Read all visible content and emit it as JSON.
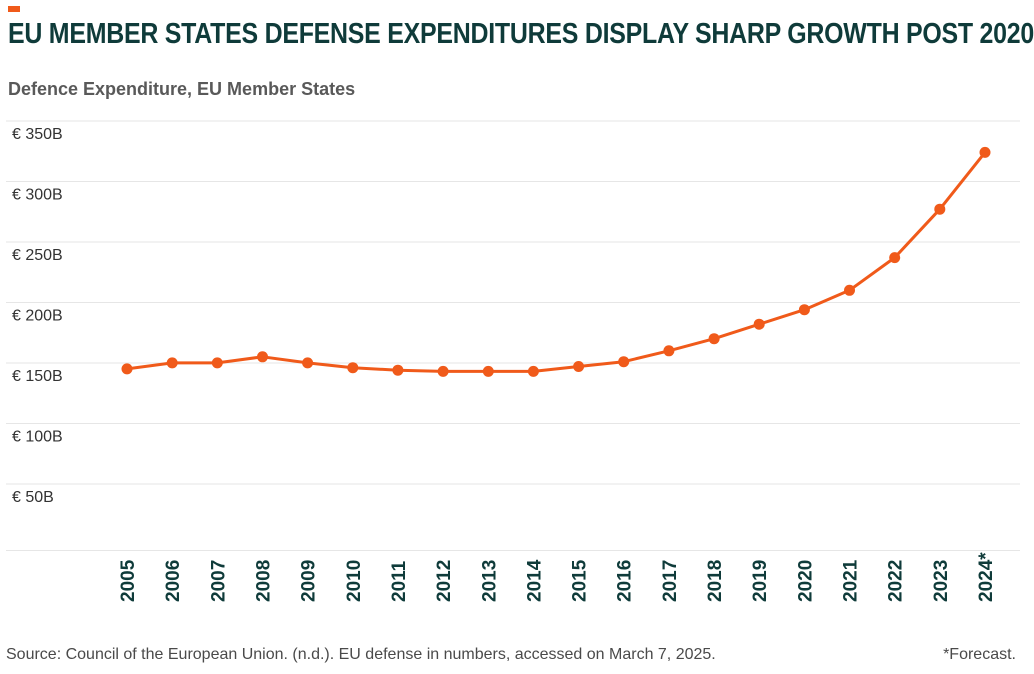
{
  "header": {
    "title": "EU MEMBER STATES DEFENSE EXPENDITURES DISPLAY SHARP GROWTH POST 2020",
    "subtitle": "Defence Expenditure, EU Member States"
  },
  "footer": {
    "source": "Source: Council of the European Union. (n.d.). EU defense in numbers, accessed on March 7, 2025.",
    "note": "*Forecast."
  },
  "colors": {
    "accent": "#f05a1a",
    "line": "#f05a1a",
    "title": "#0f3b3a",
    "grid": "#e6e6e6"
  },
  "chart_data": {
    "type": "line",
    "title": "EU MEMBER STATES DEFENSE EXPENDITURES DISPLAY SHARP GROWTH POST 2020",
    "subtitle": "Defence Expenditure, EU Member States",
    "x": [
      "2005",
      "2006",
      "2007",
      "2008",
      "2009",
      "2010",
      "2011",
      "2012",
      "2013",
      "2014",
      "2015",
      "2016",
      "2017",
      "2018",
      "2019",
      "2020",
      "2021",
      "2022",
      "2023",
      "2024*"
    ],
    "series": [
      {
        "values": [
          155,
          160,
          160,
          165,
          160,
          156,
          154,
          153,
          153,
          153,
          157,
          161,
          170,
          180,
          192,
          204,
          220,
          247,
          287,
          334
        ]
      }
    ],
    "y_ticks": [
      {
        "value": 350,
        "label": "€ 350B"
      },
      {
        "value": 300,
        "label": "€ 300B"
      },
      {
        "value": 250,
        "label": "€ 250B"
      },
      {
        "value": 200,
        "label": "€ 200B"
      },
      {
        "value": 150,
        "label": "€ 150B"
      },
      {
        "value": 100,
        "label": "€ 100B"
      },
      {
        "value": 50,
        "label": "€ 50B"
      }
    ],
    "ylim": [
      0,
      360
    ],
    "grid": true,
    "legend": "none"
  }
}
